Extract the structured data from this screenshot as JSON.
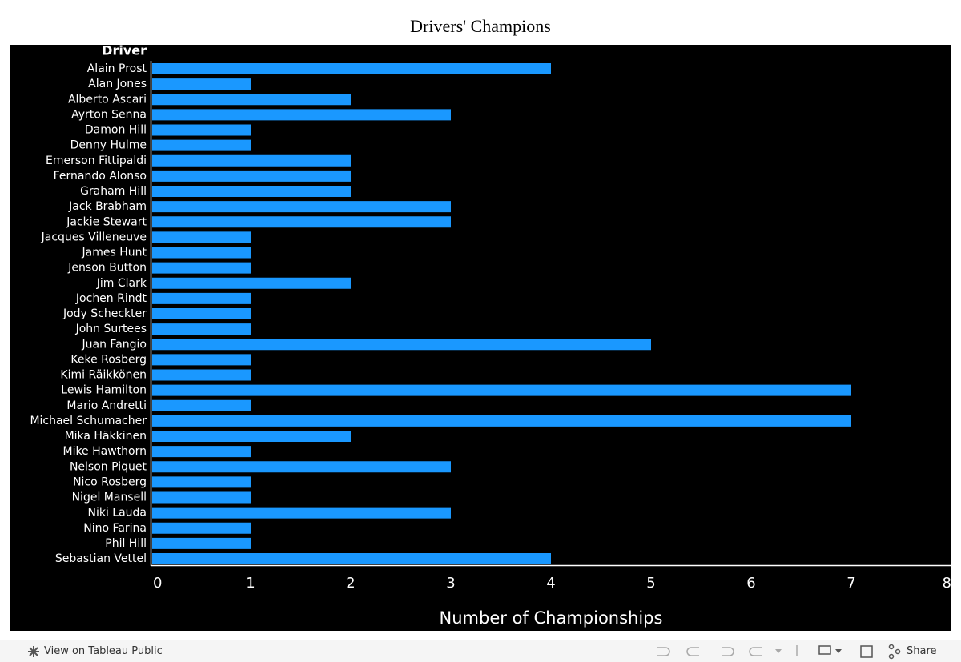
{
  "chart_data": {
    "type": "bar",
    "orientation": "horizontal",
    "title": "Drivers' Champions",
    "y_axis_label": "Driver",
    "x_axis_label": "Number of Championships",
    "categories": [
      "Alain Prost",
      "Alan Jones",
      "Alberto Ascari",
      "Ayrton Senna",
      "Damon Hill",
      "Denny Hulme",
      "Emerson Fittipaldi",
      "Fernando Alonso",
      "Graham Hill",
      "Jack Brabham",
      "Jackie Stewart",
      "Jacques Villeneuve",
      "James Hunt",
      "Jenson Button",
      "Jim Clark",
      "Jochen Rindt",
      "Jody Scheckter",
      "John Surtees",
      "Juan Fangio",
      "Keke Rosberg",
      "Kimi Räikkönen",
      "Lewis Hamilton",
      "Mario Andretti",
      "Michael Schumacher",
      "Mika Häkkinen",
      "Mike Hawthorn",
      "Nelson Piquet",
      "Nico Rosberg",
      "Nigel Mansell",
      "Niki Lauda",
      "Nino Farina",
      "Phil Hill",
      "Sebastian Vettel"
    ],
    "values": [
      4,
      1,
      2,
      3,
      1,
      1,
      2,
      2,
      2,
      3,
      3,
      1,
      1,
      1,
      2,
      1,
      1,
      1,
      5,
      1,
      1,
      7,
      1,
      7,
      2,
      1,
      3,
      1,
      1,
      3,
      1,
      1,
      4
    ],
    "color": "#1a98ff",
    "xlim": [
      0,
      8
    ],
    "xticks": [
      0,
      1,
      2,
      3,
      4,
      5,
      6,
      7,
      8
    ],
    "grid": false
  },
  "toolbar": {
    "view_link": "View on Tableau Public",
    "share": "Share"
  }
}
